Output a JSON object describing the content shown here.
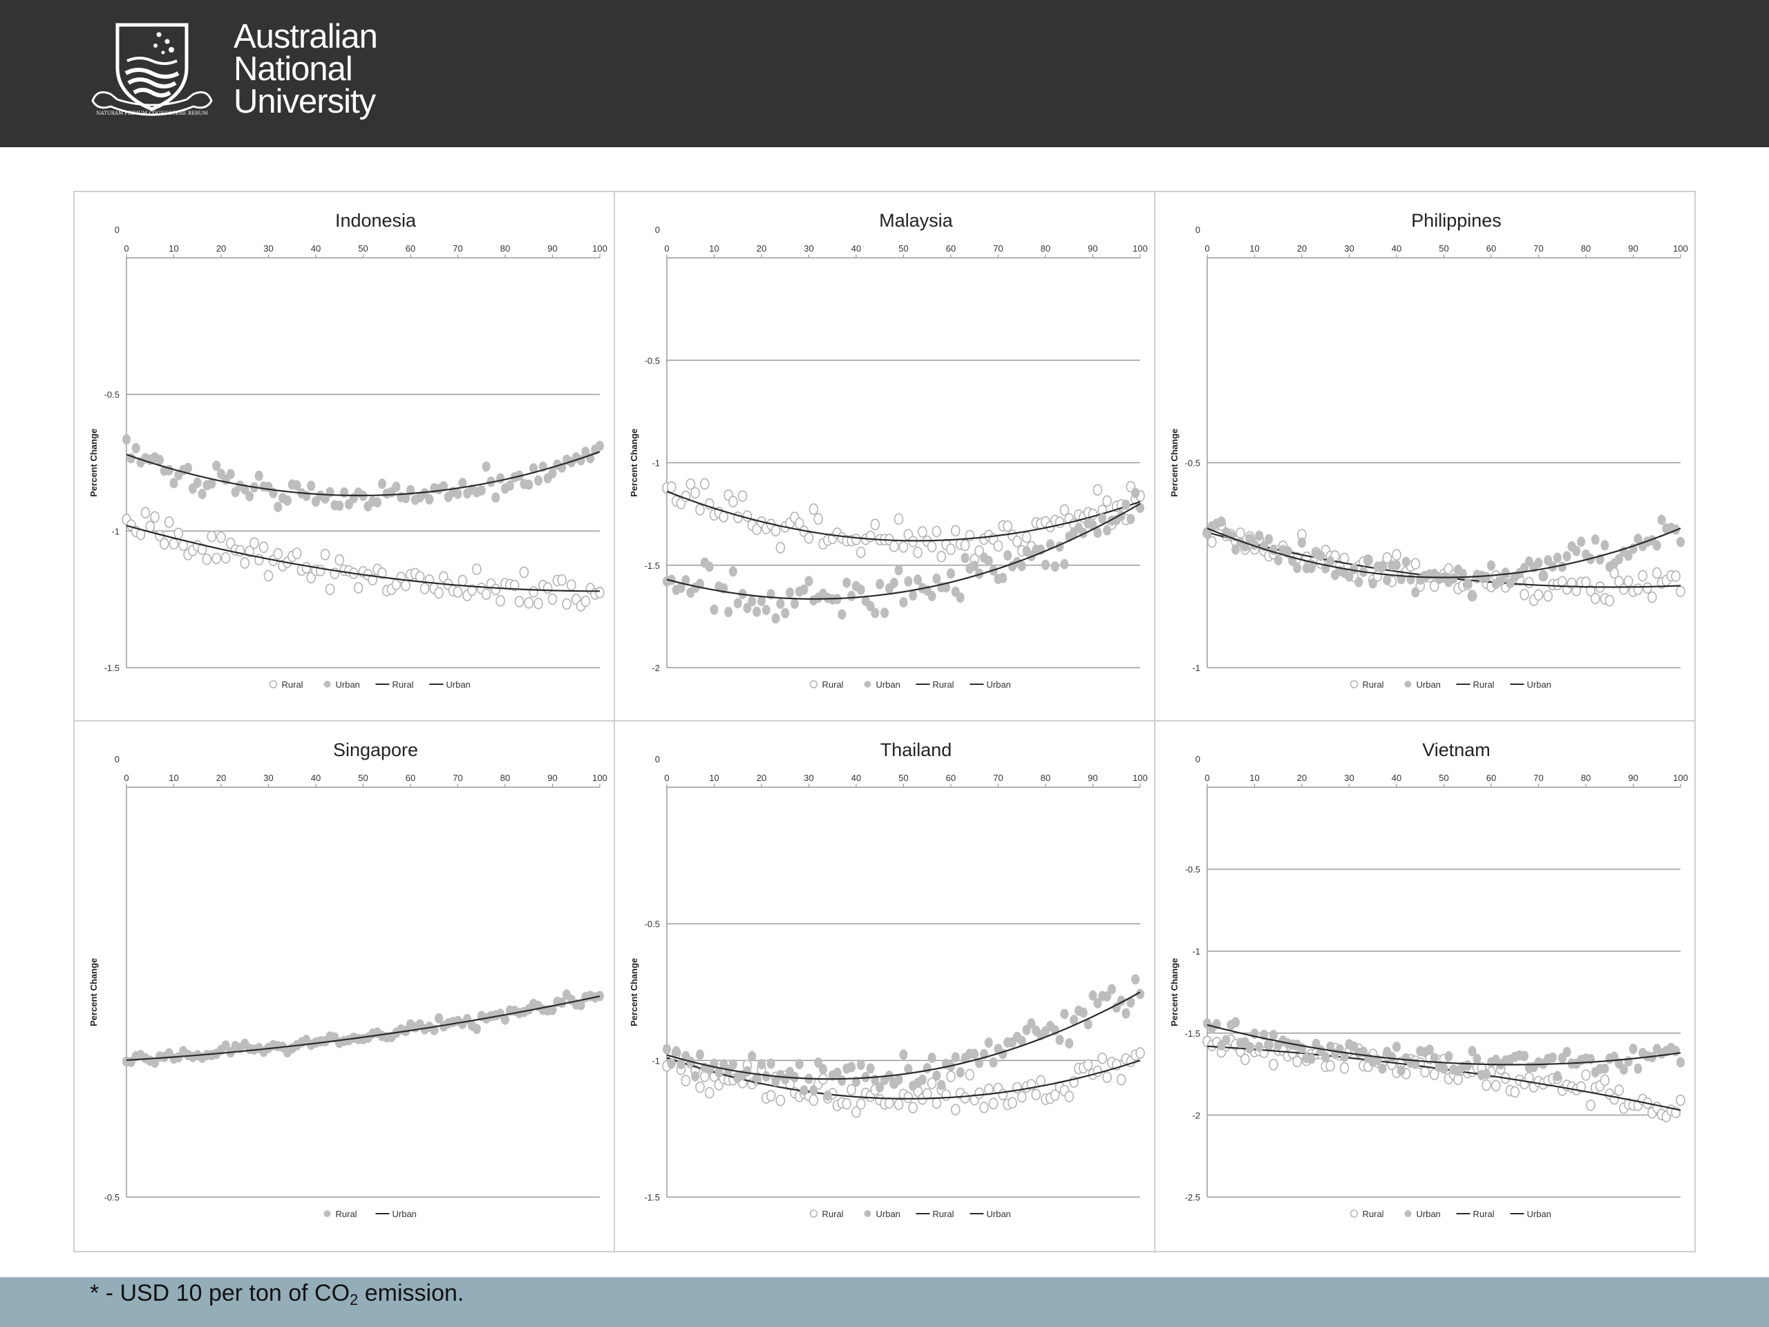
{
  "header": {
    "logo_line1": "Australian",
    "logo_line2": "National",
    "logo_line3": "University",
    "crest_motto": "NATURAM PRIMUM COGNOSCERE RERUM",
    "background": "#333333"
  },
  "footer": {
    "note_prefix": "* - USD 10 per ton of CO",
    "note_sub": "2",
    "note_suffix": " emission.",
    "background": "#93aeb9"
  },
  "chart_data": [
    {
      "type": "scatter",
      "title": "Indonesia",
      "ylabel": "Percent Change",
      "xlim": [
        0,
        100
      ],
      "ylim": [
        -1.5,
        0
      ],
      "yticks": [
        0,
        -0.5,
        -1,
        -1.5
      ],
      "xticks": [
        0,
        10,
        20,
        30,
        40,
        50,
        60,
        70,
        80,
        90,
        100
      ],
      "grid": true,
      "x_axis_position": "top",
      "legend": {
        "position": "bottom",
        "entries": [
          "Rural",
          "Urban",
          "Rural",
          "Urban"
        ]
      },
      "series": [
        {
          "name": "Rural",
          "marker": "open-circle",
          "curve": [
            -0.98,
            -1.16,
            -1.22
          ],
          "noise": 0.03
        },
        {
          "name": "Urban",
          "marker": "filled-circle",
          "curve": [
            -0.72,
            -0.87,
            -0.71
          ],
          "noise": 0.025
        }
      ]
    },
    {
      "type": "scatter",
      "title": "Malaysia",
      "ylabel": "Percent Change",
      "xlim": [
        0,
        100
      ],
      "ylim": [
        -2,
        0
      ],
      "yticks": [
        0,
        -0.5,
        -1,
        -1.5,
        -2
      ],
      "xticks": [
        0,
        10,
        20,
        30,
        40,
        50,
        60,
        70,
        80,
        90,
        100
      ],
      "grid": true,
      "x_axis_position": "top",
      "legend": {
        "position": "bottom",
        "entries": [
          "Rural",
          "Urban",
          "Rural",
          "Urban"
        ]
      },
      "series": [
        {
          "name": "Rural",
          "marker": "open-circle",
          "curve": [
            -1.14,
            -1.38,
            -1.19
          ],
          "noise": 0.05
        },
        {
          "name": "Urban",
          "marker": "filled-circle",
          "curve": [
            -1.57,
            -1.63,
            -1.2
          ],
          "noise": 0.05
        }
      ]
    },
    {
      "type": "scatter",
      "title": "Philippines",
      "ylabel": "Percent Change",
      "xlim": [
        0,
        100
      ],
      "ylim": [
        -1,
        0
      ],
      "yticks": [
        0,
        -0.5,
        -1
      ],
      "xticks": [
        0,
        10,
        20,
        30,
        40,
        50,
        60,
        70,
        80,
        90,
        100
      ],
      "grid": true,
      "x_axis_position": "top",
      "legend": {
        "position": "bottom",
        "entries": [
          "Rural",
          "Urban",
          "Rural",
          "Urban"
        ]
      },
      "series": [
        {
          "name": "Rural",
          "marker": "open-circle",
          "curve": [
            -0.67,
            -0.78,
            -0.8
          ],
          "noise": 0.02
        },
        {
          "name": "Urban",
          "marker": "filled-circle",
          "curve": [
            -0.66,
            -0.78,
            -0.66
          ],
          "noise": 0.02
        }
      ]
    },
    {
      "type": "scatter",
      "title": "Singapore",
      "ylabel": "Percent Change",
      "xlim": [
        0,
        100
      ],
      "ylim": [
        -0.5,
        0
      ],
      "yticks": [
        0,
        -0.5
      ],
      "xticks": [
        0,
        10,
        20,
        30,
        40,
        50,
        60,
        70,
        80,
        90,
        100
      ],
      "grid": false,
      "x_axis_position": "top",
      "legend": {
        "position": "bottom",
        "entries": [
          "Rural",
          "Urban"
        ]
      },
      "series": [
        {
          "name": "Rural",
          "marker": "filled-circle",
          "curve": [
            -0.333,
            -0.305,
            -0.255
          ],
          "noise": 0.004
        }
      ]
    },
    {
      "type": "scatter",
      "title": "Thailand",
      "ylabel": "Percent Change",
      "xlim": [
        0,
        100
      ],
      "ylim": [
        -1.5,
        0
      ],
      "yticks": [
        0,
        -0.5,
        -1,
        -1.5
      ],
      "xticks": [
        0,
        10,
        20,
        30,
        40,
        50,
        60,
        70,
        80,
        90,
        100
      ],
      "grid": true,
      "x_axis_position": "top",
      "legend": {
        "position": "bottom",
        "entries": [
          "Rural",
          "Urban",
          "Rural",
          "Urban"
        ]
      },
      "series": [
        {
          "name": "Rural",
          "marker": "open-circle",
          "curve": [
            -0.99,
            -1.14,
            -1.0
          ],
          "noise": 0.035
        },
        {
          "name": "Urban",
          "marker": "filled-circle",
          "curve": [
            -0.98,
            -1.05,
            -0.75
          ],
          "noise": 0.035
        }
      ]
    },
    {
      "type": "scatter",
      "title": "Vietnam",
      "ylabel": "Percent Change",
      "xlim": [
        0,
        100
      ],
      "ylim": [
        -2.5,
        0
      ],
      "yticks": [
        0,
        -0.5,
        -1,
        -1.5,
        -2,
        -2.5
      ],
      "xticks": [
        0,
        10,
        20,
        30,
        40,
        50,
        60,
        70,
        80,
        90,
        100
      ],
      "grid": true,
      "x_axis_position": "top",
      "legend": {
        "position": "bottom",
        "entries": [
          "Rural",
          "Urban",
          "Rural",
          "Urban"
        ]
      },
      "series": [
        {
          "name": "Rural",
          "marker": "open-circle",
          "curve": [
            -1.58,
            -1.72,
            -1.97
          ],
          "noise": 0.04
        },
        {
          "name": "Urban",
          "marker": "filled-circle",
          "curve": [
            -1.45,
            -1.68,
            -1.62
          ],
          "noise": 0.04
        }
      ]
    }
  ]
}
